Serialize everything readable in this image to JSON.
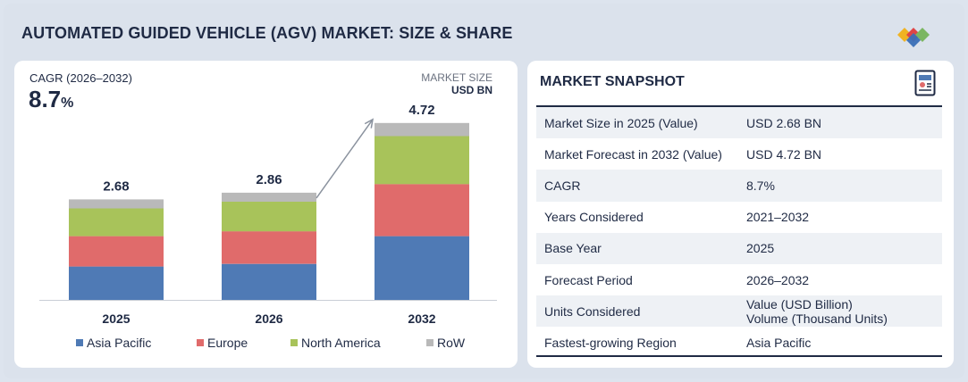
{
  "title": "AUTOMATED GUIDED VEHICLE (AGV) MARKET: SIZE & SHARE",
  "cagr": {
    "label": "CAGR (2026–2032)",
    "value": "8.7",
    "unit": "%"
  },
  "market_size": {
    "label": "MARKET SIZE",
    "unit": "USD BN"
  },
  "colors": {
    "Asia Pacific": "#4f7ab5",
    "Europe": "#e06b6b",
    "North America": "#a8c35a",
    "RoW": "#b9b9b9",
    "text": "#1f2a44"
  },
  "chart_data": {
    "type": "bar",
    "stacked": true,
    "categories": [
      "2025",
      "2026",
      "2032"
    ],
    "totals": [
      "2.68",
      "2.86",
      "4.72"
    ],
    "series": [
      {
        "name": "Asia Pacific",
        "values": [
          0.89,
          0.96,
          1.7
        ]
      },
      {
        "name": "Europe",
        "values": [
          0.81,
          0.87,
          1.39
        ]
      },
      {
        "name": "North America",
        "values": [
          0.74,
          0.79,
          1.28
        ]
      },
      {
        "name": "RoW",
        "values": [
          0.24,
          0.24,
          0.35
        ]
      }
    ],
    "legend": "bottom"
  },
  "snapshot": {
    "title": "MARKET SNAPSHOT",
    "rows": [
      {
        "key": "Market Size in 2025 (Value)",
        "value": "USD 2.68 BN"
      },
      {
        "key": "Market Forecast in 2032 (Value)",
        "value": "USD 4.72 BN"
      },
      {
        "key": "CAGR",
        "value": "8.7%"
      },
      {
        "key": "Years Considered",
        "value": "2021–2032"
      },
      {
        "key": "Base Year",
        "value": "2025"
      },
      {
        "key": "Forecast Period",
        "value": "2026–2032"
      },
      {
        "key": "Units Considered",
        "value": "Value (USD Billion)",
        "value2": "Volume (Thousand Units)"
      },
      {
        "key": "Fastest-growing Region",
        "value": "Asia Pacific"
      }
    ]
  }
}
